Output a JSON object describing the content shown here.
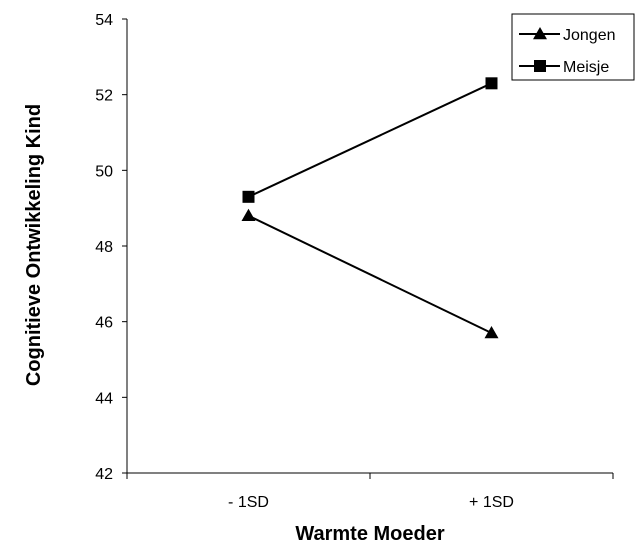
{
  "chart_data": {
    "type": "line",
    "categories": [
      "- 1SD",
      "+ 1SD"
    ],
    "series": [
      {
        "name": "Jongen",
        "values": [
          48.8,
          45.7
        ],
        "marker": "triangle",
        "color": "#000000"
      },
      {
        "name": "Meisje",
        "values": [
          49.3,
          52.3
        ],
        "marker": "square",
        "color": "#000000"
      }
    ],
    "xlabel": "Warmte Moeder",
    "ylabel": "Cognitieve Ontwikkeling Kind",
    "ylim": [
      42,
      54
    ],
    "yticks": [
      "42",
      "44",
      "46",
      "48",
      "50",
      "52",
      "54"
    ],
    "grid": false,
    "legend_position": "top-right"
  }
}
